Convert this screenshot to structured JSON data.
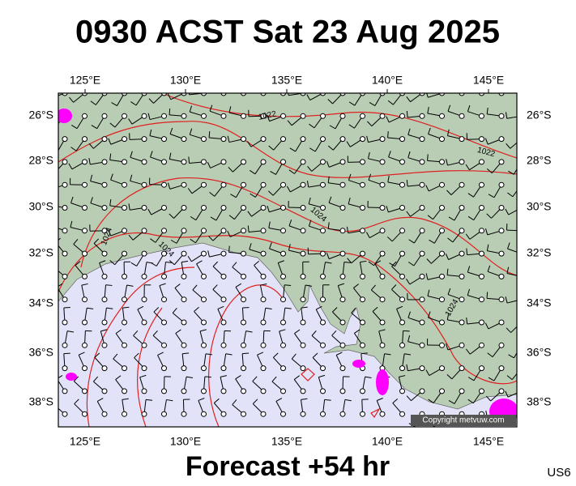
{
  "header": {
    "title": "0930 ACST Sat 23 Aug 2025"
  },
  "map": {
    "lon_labels": [
      "125°E",
      "130°E",
      "135°E",
      "140°E",
      "145°E"
    ],
    "lat_labels": [
      "26°S",
      "28°S",
      "30°S",
      "32°S",
      "34°S",
      "36°S",
      "38°S"
    ],
    "contour_labels": [
      "1022",
      "1022",
      "1024",
      "1024",
      "1024",
      "1024"
    ],
    "copyright": "Copyright metvuw.com"
  },
  "footer": {
    "forecast": "Forecast +54 hr",
    "code": "US6"
  }
}
